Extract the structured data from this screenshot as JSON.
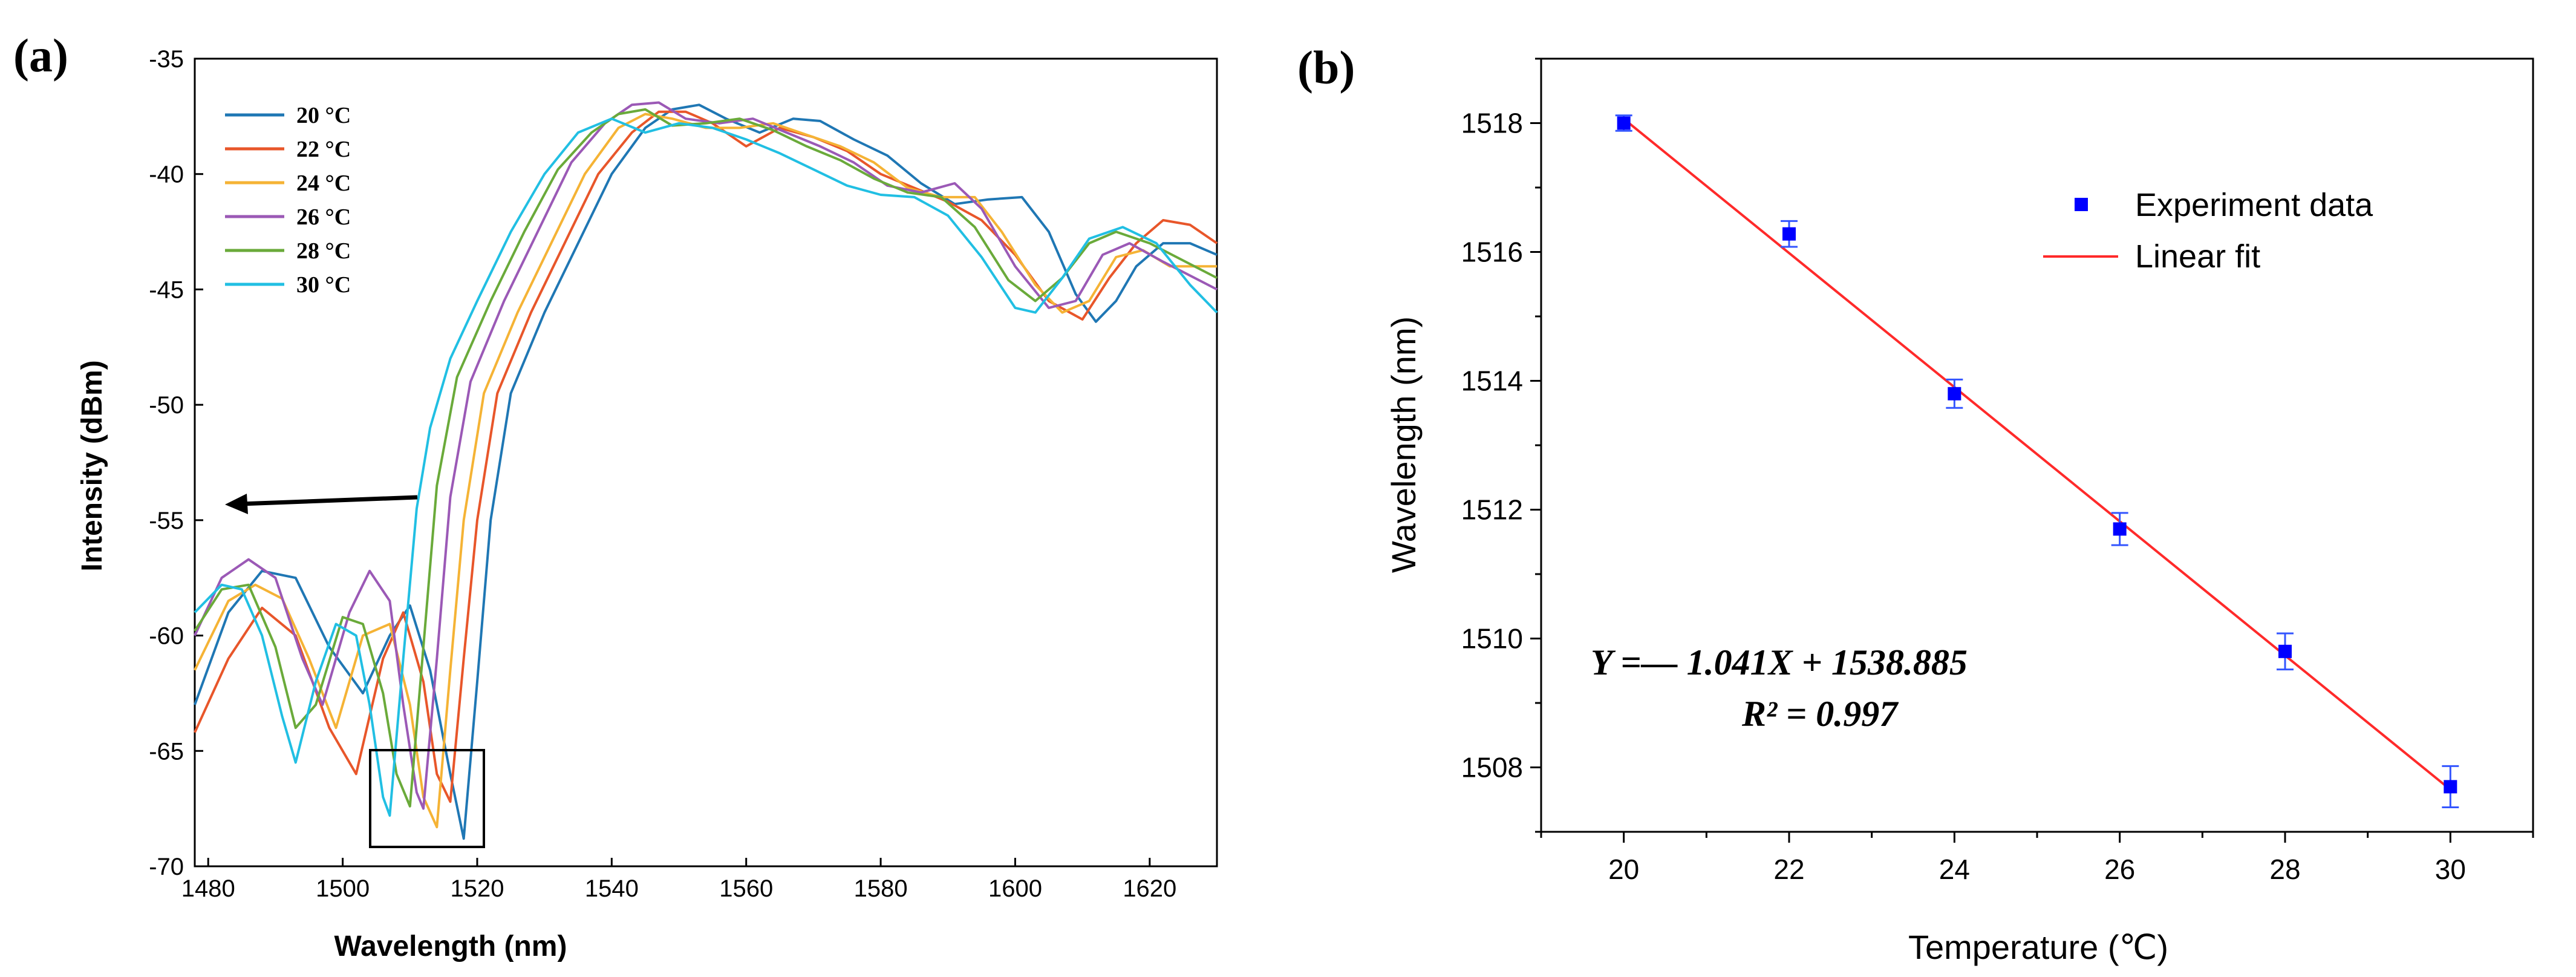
{
  "figure": {
    "panel_a_label": "(a)",
    "panel_b_label": "(b)"
  },
  "chart_data": [
    {
      "type": "line",
      "panel": "(a)",
      "xlabel": "Wavelength (nm)",
      "ylabel": "Intensity (dBm)",
      "xlim": [
        1478,
        1630
      ],
      "ylim": [
        -70,
        -35
      ],
      "xticks": [
        1480,
        1500,
        1520,
        1540,
        1560,
        1580,
        1600,
        1620
      ],
      "yticks": [
        -35,
        -40,
        -45,
        -50,
        -55,
        -60,
        -65,
        -70
      ],
      "annotations": [
        "left-pointing arrow indicating blue shift with increasing temperature",
        "box highlighting spectral dips near 1505-1520 nm"
      ],
      "series": [
        {
          "name": "20 °C",
          "color": "#1f77b4",
          "shift": 0,
          "dipX": 1518,
          "dipY": -68.8,
          "points": [
            [
              1478,
              -63
            ],
            [
              1483,
              -59
            ],
            [
              1488,
              -57.2
            ],
            [
              1493,
              -57.5
            ],
            [
              1498,
              -60.5
            ],
            [
              1503,
              -62.5
            ],
            [
              1507,
              -60
            ],
            [
              1510,
              -58.7
            ],
            [
              1513,
              -61.5
            ],
            [
              1516,
              -66
            ],
            [
              1518,
              -68.8
            ],
            [
              1520,
              -62
            ],
            [
              1522,
              -55
            ],
            [
              1525,
              -49.5
            ],
            [
              1530,
              -46
            ],
            [
              1535,
              -43
            ],
            [
              1540,
              -40
            ],
            [
              1545,
              -38
            ],
            [
              1549,
              -37.2
            ],
            [
              1553,
              -37
            ],
            [
              1557,
              -37.6
            ],
            [
              1562,
              -38.2
            ],
            [
              1567,
              -37.6
            ],
            [
              1571,
              -37.7
            ],
            [
              1576,
              -38.5
            ],
            [
              1581,
              -39.2
            ],
            [
              1586,
              -40.4
            ],
            [
              1591,
              -41.3
            ],
            [
              1596,
              -41.1
            ],
            [
              1601,
              -41
            ],
            [
              1605,
              -42.5
            ],
            [
              1609,
              -45.2
            ],
            [
              1612,
              -46.4
            ],
            [
              1615,
              -45.5
            ],
            [
              1618,
              -44
            ],
            [
              1622,
              -43
            ],
            [
              1626,
              -43
            ],
            [
              1630,
              -43.5
            ]
          ]
        },
        {
          "name": "22 °C",
          "color": "#e8562a",
          "shift": -2.2,
          "dipX": 1516,
          "dipY": -67.2,
          "points": [
            [
              1478,
              -64.2
            ],
            [
              1483,
              -61
            ],
            [
              1488,
              -58.8
            ],
            [
              1493,
              -60
            ],
            [
              1498,
              -64
            ],
            [
              1502,
              -66
            ],
            [
              1506,
              -61
            ],
            [
              1509,
              -59
            ],
            [
              1512,
              -62
            ],
            [
              1514,
              -66
            ],
            [
              1516,
              -67.2
            ],
            [
              1518,
              -61
            ],
            [
              1520,
              -55
            ],
            [
              1523,
              -49.5
            ],
            [
              1528,
              -46
            ],
            [
              1533,
              -43
            ],
            [
              1538,
              -40
            ],
            [
              1543,
              -38.2
            ],
            [
              1547,
              -37.3
            ],
            [
              1551,
              -37.3
            ],
            [
              1555,
              -37.8
            ],
            [
              1560,
              -38.8
            ],
            [
              1565,
              -38
            ],
            [
              1570,
              -38.4
            ],
            [
              1575,
              -39
            ],
            [
              1580,
              -40
            ],
            [
              1585,
              -40.6
            ],
            [
              1590,
              -41.2
            ],
            [
              1595,
              -42
            ],
            [
              1600,
              -43.5
            ],
            [
              1605,
              -45.5
            ],
            [
              1610,
              -46.3
            ],
            [
              1614,
              -44.5
            ],
            [
              1618,
              -43
            ],
            [
              1622,
              -42
            ],
            [
              1626,
              -42.2
            ],
            [
              1630,
              -43
            ]
          ]
        },
        {
          "name": "24 °C",
          "color": "#f5b335",
          "shift": -4.1,
          "dipX": 1514,
          "dipY": -68.3,
          "points": [
            [
              1478,
              -61.5
            ],
            [
              1483,
              -58.5
            ],
            [
              1487,
              -57.8
            ],
            [
              1491,
              -58.4
            ],
            [
              1495,
              -61
            ],
            [
              1499,
              -64
            ],
            [
              1503,
              -60
            ],
            [
              1507,
              -59.5
            ],
            [
              1510,
              -63
            ],
            [
              1512,
              -67
            ],
            [
              1514,
              -68.3
            ],
            [
              1516,
              -61.5
            ],
            [
              1518,
              -55
            ],
            [
              1521,
              -49.5
            ],
            [
              1526,
              -46
            ],
            [
              1531,
              -43
            ],
            [
              1536,
              -40
            ],
            [
              1541,
              -38
            ],
            [
              1545,
              -37.4
            ],
            [
              1549,
              -37.6
            ],
            [
              1554,
              -38
            ],
            [
              1559,
              -38
            ],
            [
              1564,
              -37.8
            ],
            [
              1569,
              -38.3
            ],
            [
              1574,
              -38.8
            ],
            [
              1579,
              -39.5
            ],
            [
              1584,
              -40.6
            ],
            [
              1589,
              -41
            ],
            [
              1594,
              -41
            ],
            [
              1598,
              -42.5
            ],
            [
              1603,
              -44.8
            ],
            [
              1607,
              -46
            ],
            [
              1611,
              -45.5
            ],
            [
              1615,
              -43.6
            ],
            [
              1619,
              -43.3
            ],
            [
              1623,
              -44
            ],
            [
              1630,
              -44
            ]
          ]
        },
        {
          "name": "26 °C",
          "color": "#9b59b6",
          "shift": -6.3,
          "dipX": 1512,
          "dipY": -67.5,
          "points": [
            [
              1478,
              -60
            ],
            [
              1482,
              -57.5
            ],
            [
              1486,
              -56.7
            ],
            [
              1490,
              -57.5
            ],
            [
              1494,
              -61
            ],
            [
              1497,
              -63
            ],
            [
              1501,
              -59
            ],
            [
              1504,
              -57.2
            ],
            [
              1507,
              -58.5
            ],
            [
              1509,
              -63
            ],
            [
              1511,
              -66.8
            ],
            [
              1512,
              -67.5
            ],
            [
              1514,
              -61
            ],
            [
              1516,
              -54
            ],
            [
              1519,
              -49
            ],
            [
              1524,
              -45.5
            ],
            [
              1529,
              -42.5
            ],
            [
              1534,
              -39.5
            ],
            [
              1539,
              -37.8
            ],
            [
              1543,
              -37
            ],
            [
              1547,
              -36.9
            ],
            [
              1551,
              -37.6
            ],
            [
              1556,
              -37.8
            ],
            [
              1561,
              -37.6
            ],
            [
              1566,
              -38.2
            ],
            [
              1571,
              -38.8
            ],
            [
              1576,
              -39.5
            ],
            [
              1581,
              -40.5
            ],
            [
              1586,
              -40.8
            ],
            [
              1591,
              -40.4
            ],
            [
              1595,
              -41.5
            ],
            [
              1600,
              -44
            ],
            [
              1605,
              -45.8
            ],
            [
              1609,
              -45.5
            ],
            [
              1613,
              -43.5
            ],
            [
              1617,
              -43
            ],
            [
              1622,
              -43.8
            ],
            [
              1630,
              -45
            ]
          ]
        },
        {
          "name": "28 °C",
          "color": "#6aaa3a",
          "shift": -8.2,
          "dipX": 1510,
          "dipY": -67.4,
          "points": [
            [
              1478,
              -59.8
            ],
            [
              1482,
              -58
            ],
            [
              1486,
              -57.8
            ],
            [
              1490,
              -60.5
            ],
            [
              1493,
              -64
            ],
            [
              1496,
              -63
            ],
            [
              1500,
              -59.2
            ],
            [
              1503,
              -59.5
            ],
            [
              1506,
              -62.5
            ],
            [
              1508,
              -66
            ],
            [
              1510,
              -67.4
            ],
            [
              1512,
              -60.5
            ],
            [
              1514,
              -53.5
            ],
            [
              1517,
              -48.8
            ],
            [
              1522,
              -45.5
            ],
            [
              1527,
              -42.5
            ],
            [
              1532,
              -39.8
            ],
            [
              1537,
              -38.2
            ],
            [
              1541,
              -37.4
            ],
            [
              1545,
              -37.2
            ],
            [
              1549,
              -37.9
            ],
            [
              1554,
              -37.8
            ],
            [
              1559,
              -37.6
            ],
            [
              1564,
              -38.1
            ],
            [
              1569,
              -38.8
            ],
            [
              1574,
              -39.4
            ],
            [
              1579,
              -40.2
            ],
            [
              1584,
              -40.8
            ],
            [
              1589,
              -41
            ],
            [
              1594,
              -42.3
            ],
            [
              1599,
              -44.6
            ],
            [
              1603,
              -45.5
            ],
            [
              1607,
              -44.5
            ],
            [
              1611,
              -43
            ],
            [
              1615,
              -42.5
            ],
            [
              1620,
              -43
            ],
            [
              1630,
              -44.5
            ]
          ]
        },
        {
          "name": "30 °C",
          "color": "#21bfe3",
          "shift": -10.2,
          "dipX": 1507,
          "dipY": -67.8,
          "points": [
            [
              1478,
              -59
            ],
            [
              1482,
              -57.8
            ],
            [
              1485,
              -58
            ],
            [
              1488,
              -60
            ],
            [
              1491,
              -63.5
            ],
            [
              1493,
              -65.5
            ],
            [
              1496,
              -62
            ],
            [
              1499,
              -59.5
            ],
            [
              1502,
              -60
            ],
            [
              1504,
              -63
            ],
            [
              1506,
              -67
            ],
            [
              1507,
              -67.8
            ],
            [
              1509,
              -61
            ],
            [
              1511,
              -54.5
            ],
            [
              1513,
              -51
            ],
            [
              1516,
              -48
            ],
            [
              1520,
              -45.5
            ],
            [
              1525,
              -42.5
            ],
            [
              1530,
              -40
            ],
            [
              1535,
              -38.2
            ],
            [
              1540,
              -37.6
            ],
            [
              1545,
              -38.2
            ],
            [
              1550,
              -37.8
            ],
            [
              1555,
              -38
            ],
            [
              1560,
              -38.5
            ],
            [
              1565,
              -39.1
            ],
            [
              1570,
              -39.8
            ],
            [
              1575,
              -40.5
            ],
            [
              1580,
              -40.9
            ],
            [
              1585,
              -41
            ],
            [
              1590,
              -41.8
            ],
            [
              1595,
              -43.6
            ],
            [
              1600,
              -45.8
            ],
            [
              1603,
              -46
            ],
            [
              1607,
              -44.5
            ],
            [
              1611,
              -42.8
            ],
            [
              1616,
              -42.3
            ],
            [
              1621,
              -43
            ],
            [
              1626,
              -44.8
            ],
            [
              1630,
              -46
            ]
          ]
        }
      ]
    },
    {
      "type": "scatter",
      "panel": "(b)",
      "xlabel": "Temperature (℃)",
      "ylabel": "Wavelength (nm)",
      "xlim": [
        19,
        31
      ],
      "ylim": [
        1507,
        1519
      ],
      "xticks": [
        20,
        22,
        24,
        26,
        28,
        30
      ],
      "yticks": [
        1508,
        1510,
        1512,
        1514,
        1516,
        1518
      ],
      "legend": [
        "Experiment data",
        "Linear fit"
      ],
      "fit": {
        "slope": -1.041,
        "intercept": 1538.885,
        "color": "#ff2a2a"
      },
      "equation": "Y =— 1.041X + 1538.885",
      "r2_text": "R² = 0.997",
      "points": [
        {
          "x": 20,
          "y": 1518.0,
          "err": 0.12
        },
        {
          "x": 22,
          "y": 1516.28,
          "err": 0.2
        },
        {
          "x": 24,
          "y": 1513.8,
          "err": 0.22
        },
        {
          "x": 26,
          "y": 1511.7,
          "err": 0.25
        },
        {
          "x": 28,
          "y": 1509.8,
          "err": 0.28
        },
        {
          "x": 30,
          "y": 1507.7,
          "err": 0.32
        }
      ],
      "marker_color": "#0000ff"
    }
  ]
}
